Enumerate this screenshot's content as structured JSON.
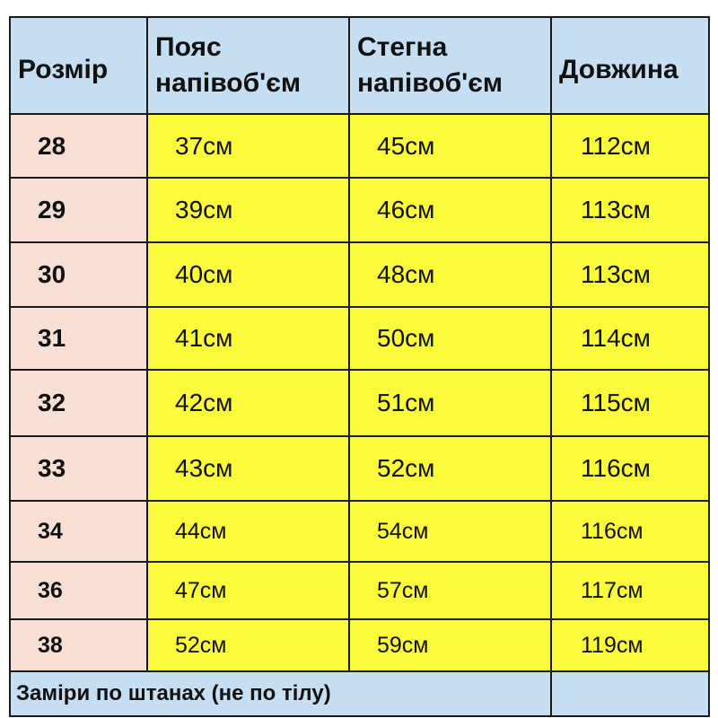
{
  "headers": [
    "Розмір",
    "Пояс напівоб'єм",
    "Стегна напівоб'єм",
    "Довжина"
  ],
  "rows": [
    [
      "28",
      "37см",
      "45см",
      "112см"
    ],
    [
      "29",
      "39см",
      "46см",
      "113см"
    ],
    [
      "30",
      "40см",
      "48см",
      "113см"
    ],
    [
      "31",
      "41см",
      "50см",
      "114см"
    ],
    [
      "32",
      "42см",
      "51см",
      "115см"
    ],
    [
      "33",
      "43см",
      "52см",
      "116см"
    ],
    [
      "34",
      "44см",
      "54см",
      "116см"
    ],
    [
      "36",
      "47см",
      "57см",
      "117см"
    ],
    [
      "38",
      "52см",
      "59см",
      "119см"
    ]
  ],
  "footer_note": "Заміри по штанах (не по тілу)",
  "colors": {
    "header": "#c5def2",
    "size_column": "#f7dfd6",
    "values": "#fbfb3c"
  }
}
